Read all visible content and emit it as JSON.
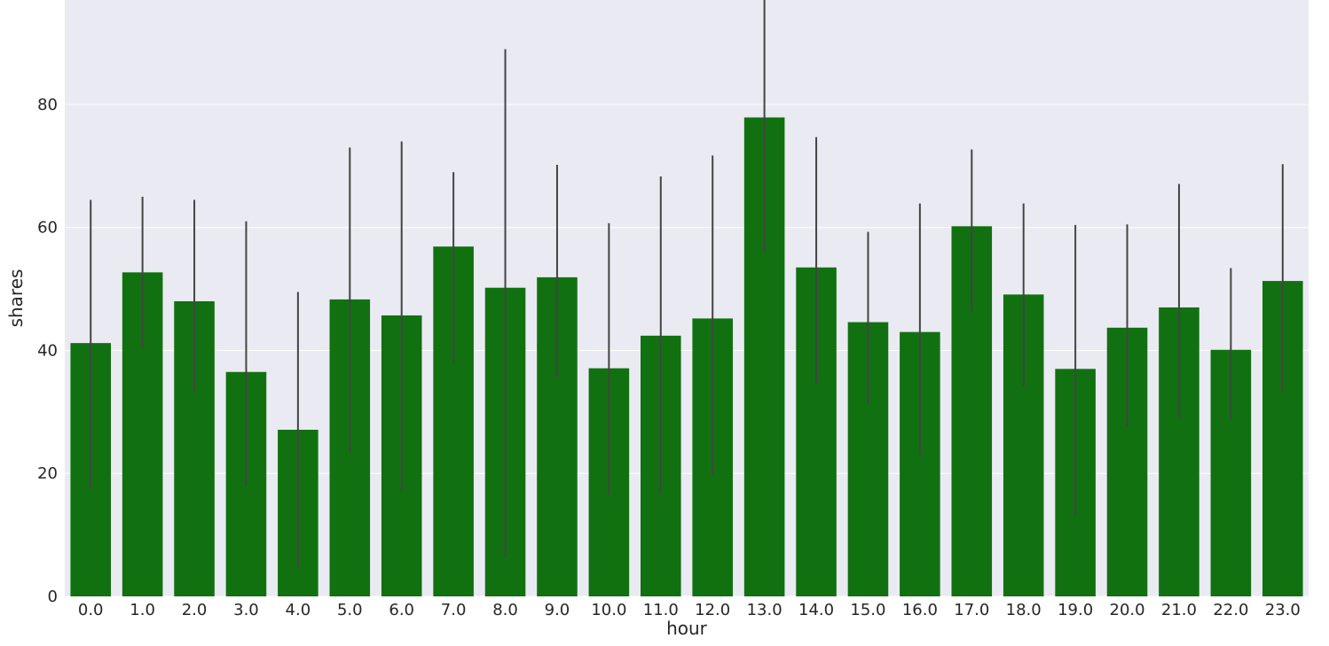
{
  "chart_data": {
    "type": "bar",
    "xlabel": "hour",
    "ylabel": "shares",
    "ylim": [
      0,
      97
    ],
    "yticks": [
      "0",
      "20",
      "40",
      "60",
      "80"
    ],
    "ytick_values": [
      0,
      20,
      40,
      60,
      80
    ],
    "categories": [
      "0.0",
      "1.0",
      "2.0",
      "3.0",
      "4.0",
      "5.0",
      "6.0",
      "7.0",
      "8.0",
      "9.0",
      "10.0",
      "11.0",
      "12.0",
      "13.0",
      "14.0",
      "15.0",
      "16.0",
      "17.0",
      "18.0",
      "19.0",
      "20.0",
      "21.0",
      "22.0",
      "23.0"
    ],
    "values": [
      41.2,
      52.7,
      48.0,
      36.5,
      27.1,
      48.3,
      45.7,
      56.9,
      50.2,
      51.9,
      37.1,
      42.4,
      45.2,
      77.9,
      53.5,
      44.6,
      43.0,
      60.2,
      49.1,
      37.0,
      43.7,
      47.0,
      40.1,
      51.3
    ],
    "error_low": [
      17.5,
      40.5,
      33.2,
      18.0,
      4.6,
      23.3,
      17.1,
      38.0,
      6.2,
      35.6,
      16.5,
      16.6,
      19.8,
      55.8,
      34.6,
      31.3,
      23.0,
      46.3,
      34.2,
      13.0,
      27.6,
      29.0,
      28.8,
      33.2
    ],
    "error_high": [
      64.5,
      65.0,
      64.5,
      61.0,
      49.5,
      73.0,
      74.0,
      69.0,
      89.0,
      70.2,
      60.7,
      68.3,
      71.7,
      97.0,
      74.7,
      59.3,
      63.9,
      72.7,
      63.9,
      60.4,
      60.5,
      67.1,
      53.4,
      70.3
    ],
    "grid": true,
    "bar_color": "#117111",
    "errorbar_color": "#444444",
    "background_color": "#eaeaf2",
    "grid_color": "#ffffff"
  }
}
